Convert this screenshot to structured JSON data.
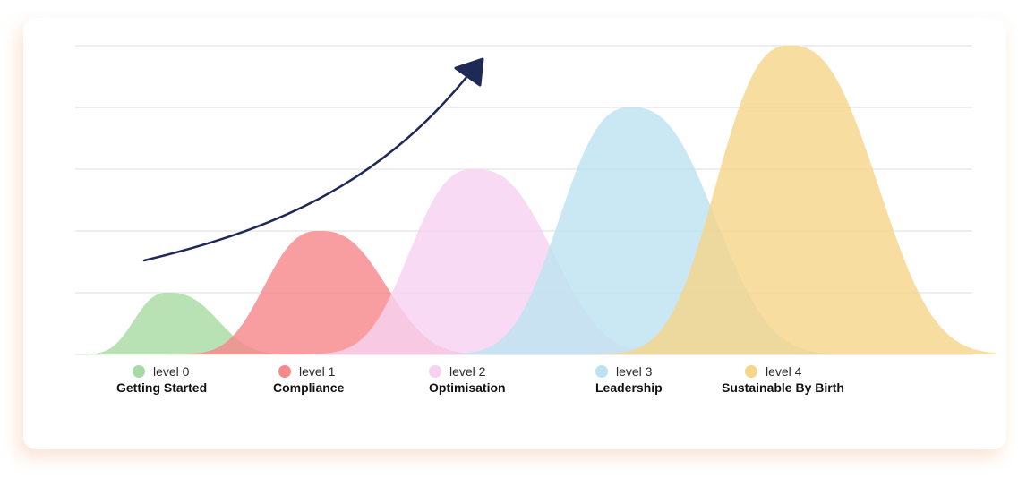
{
  "chart_data": {
    "type": "area",
    "title": "",
    "xlabel": "",
    "ylabel": "",
    "ylim": [
      0,
      5
    ],
    "grid": true,
    "legend": "bottom",
    "trend_arrow": true,
    "series": [
      {
        "level": "level 0",
        "name": "Getting Started",
        "peak": 1,
        "color": "#a8dba4"
      },
      {
        "level": "level 1",
        "name": "Compliance",
        "peak": 2,
        "color": "#f7898b"
      },
      {
        "level": "level 2",
        "name": "Optimisation",
        "peak": 3,
        "color": "#f6d2f1"
      },
      {
        "level": "level 3",
        "name": "Leadership",
        "peak": 4,
        "color": "#bde3f2"
      },
      {
        "level": "level 4",
        "name": "Sustainable By Birth",
        "peak": 5,
        "color": "#f5d68a"
      }
    ]
  },
  "colors": {
    "arrow": "#1e2a55",
    "grid": "#dedede",
    "card_shadow": "#fbd9c6"
  }
}
